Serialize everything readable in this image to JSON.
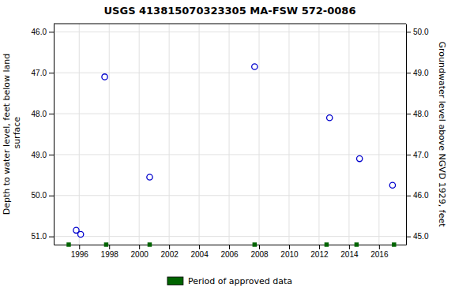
{
  "chart_data": {
    "type": "scatter",
    "title": "USGS 413815070323305 MA-FSW  572-0086",
    "y_label": "Depth to water level, feet below land\n surface",
    "y2_label": "Groundwater level above NGVD 1929, feet",
    "series": [
      {
        "color": "#0000cc",
        "marker": "circle-open",
        "x": [
          1995.8,
          1996.1,
          1997.7,
          2000.7,
          2007.7,
          2012.7,
          2014.7,
          2016.9
        ],
        "values": [
          50.85,
          50.95,
          47.1,
          49.55,
          46.85,
          48.1,
          49.1,
          49.75
        ]
      },
      {
        "name": "Period of approved data",
        "color": "#006400",
        "marker": "square",
        "x": [
          1995.3,
          1997.8,
          2000.7,
          2007.7,
          2012.5,
          2014.5,
          2017.0
        ],
        "values": [
          51.2,
          51.2,
          51.2,
          51.2,
          51.2,
          51.2,
          51.2
        ]
      }
    ],
    "xlim": [
      1994.3,
      2017.8
    ],
    "xticks": [
      1996,
      1998,
      2000,
      2002,
      2004,
      2006,
      2008,
      2010,
      2012,
      2014,
      2016
    ],
    "ylim": [
      51.2,
      45.8
    ],
    "yticks": [
      {
        "value": 46.0,
        "label": "46.0"
      },
      {
        "value": 47.0,
        "label": "47.0"
      },
      {
        "value": 48.0,
        "label": "48.0"
      },
      {
        "value": 49.0,
        "label": "49.0"
      },
      {
        "value": 50.0,
        "label": "50.0"
      },
      {
        "value": 51.0,
        "label": "51.0"
      }
    ],
    "y2lim": [
      44.8,
      50.2
    ],
    "y2ticks": [
      {
        "value": 45.0,
        "label": "45.0"
      },
      {
        "value": 46.0,
        "label": "46.0"
      },
      {
        "value": 47.0,
        "label": "47.0"
      },
      {
        "value": 48.0,
        "label": "48.0"
      },
      {
        "value": 49.0,
        "label": "49.0"
      },
      {
        "value": 50.0,
        "label": "50.0"
      }
    ],
    "grid": true,
    "legend": "bottom"
  }
}
